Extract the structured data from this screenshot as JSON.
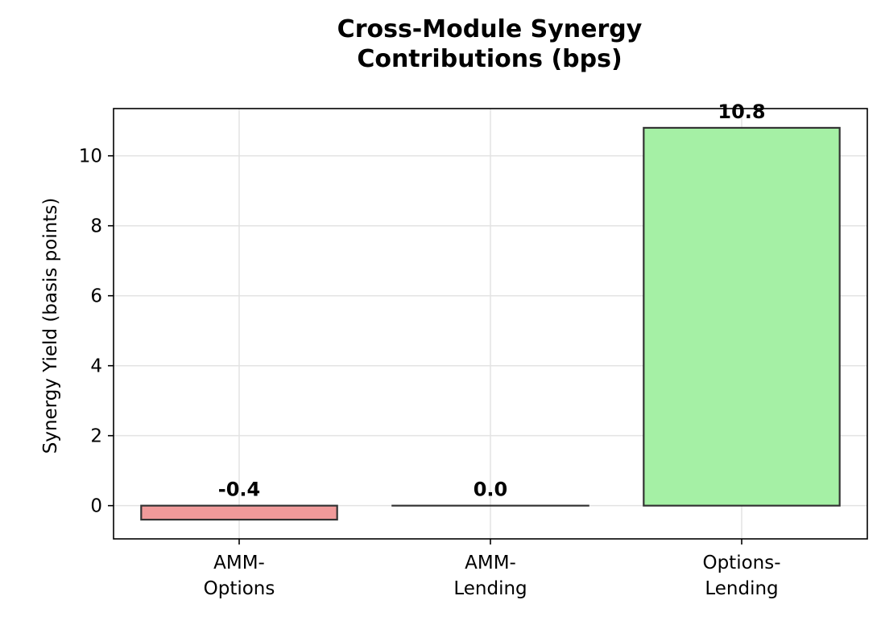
{
  "chart_data": {
    "type": "bar",
    "title": [
      "Cross-Module Synergy",
      "Contributions (bps)"
    ],
    "xlabel": "",
    "ylabel": "Synergy Yield (basis points)",
    "categories": [
      [
        "AMM-",
        "Options"
      ],
      [
        "AMM-",
        "Lending"
      ],
      [
        "Options-",
        "Lending"
      ]
    ],
    "values": [
      -0.4,
      0.0,
      10.8
    ],
    "data_labels": [
      "-0.4",
      "0.0",
      "10.8"
    ],
    "bar_colors": [
      "#f09a9a",
      "#8fbc8f",
      "#a5f0a5"
    ],
    "edge_color": "#333333",
    "ylim": [
      -0.95,
      11.35
    ],
    "yticks": [
      0,
      2,
      4,
      6,
      8,
      10
    ],
    "grid": true
  }
}
